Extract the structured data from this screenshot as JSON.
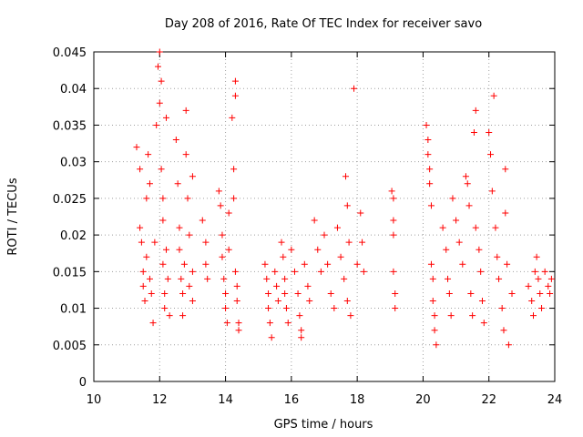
{
  "chart_data": {
    "type": "scatter",
    "title": "Day 208 of 2016, Rate Of TEC Index for receiver savo",
    "xlabel": "GPS time / hours",
    "ylabel": "ROTI / TECUs",
    "xlim": [
      10,
      24
    ],
    "ylim": [
      0,
      0.045
    ],
    "x_ticks": [
      "10",
      "12",
      "14",
      "16",
      "18",
      "20",
      "22",
      "24"
    ],
    "y_ticks": [
      "0",
      "0.005",
      "0.01",
      "0.015",
      "0.02",
      "0.025",
      "0.03",
      "0.035",
      "0.04",
      "0.045"
    ],
    "grid": true,
    "marker": "+",
    "color": "#ff0000",
    "points": [
      [
        11.3,
        0.032
      ],
      [
        11.4,
        0.029
      ],
      [
        11.4,
        0.021
      ],
      [
        11.45,
        0.019
      ],
      [
        11.5,
        0.015
      ],
      [
        11.5,
        0.013
      ],
      [
        11.55,
        0.011
      ],
      [
        11.6,
        0.017
      ],
      [
        11.6,
        0.025
      ],
      [
        11.65,
        0.031
      ],
      [
        11.7,
        0.027
      ],
      [
        11.7,
        0.014
      ],
      [
        11.75,
        0.012
      ],
      [
        11.8,
        0.008
      ],
      [
        11.85,
        0.019
      ],
      [
        11.9,
        0.035
      ],
      [
        11.95,
        0.043
      ],
      [
        12.0,
        0.045
      ],
      [
        12.0,
        0.038
      ],
      [
        12.05,
        0.041
      ],
      [
        12.05,
        0.029
      ],
      [
        12.1,
        0.025
      ],
      [
        12.1,
        0.022
      ],
      [
        12.1,
        0.016
      ],
      [
        12.15,
        0.012
      ],
      [
        12.15,
        0.01
      ],
      [
        12.2,
        0.036
      ],
      [
        12.2,
        0.018
      ],
      [
        12.25,
        0.014
      ],
      [
        12.3,
        0.009
      ],
      [
        12.5,
        0.033
      ],
      [
        12.55,
        0.027
      ],
      [
        12.6,
        0.021
      ],
      [
        12.6,
        0.018
      ],
      [
        12.65,
        0.014
      ],
      [
        12.7,
        0.012
      ],
      [
        12.7,
        0.009
      ],
      [
        12.75,
        0.016
      ],
      [
        12.8,
        0.037
      ],
      [
        12.8,
        0.031
      ],
      [
        12.85,
        0.025
      ],
      [
        12.9,
        0.02
      ],
      [
        12.9,
        0.013
      ],
      [
        13.0,
        0.028
      ],
      [
        13.0,
        0.015
      ],
      [
        13.0,
        0.011
      ],
      [
        13.3,
        0.022
      ],
      [
        13.4,
        0.019
      ],
      [
        13.4,
        0.016
      ],
      [
        13.45,
        0.014
      ],
      [
        13.8,
        0.026
      ],
      [
        13.85,
        0.024
      ],
      [
        13.9,
        0.02
      ],
      [
        13.9,
        0.017
      ],
      [
        13.95,
        0.014
      ],
      [
        14.0,
        0.012
      ],
      [
        14.0,
        0.01
      ],
      [
        14.05,
        0.008
      ],
      [
        14.1,
        0.023
      ],
      [
        14.1,
        0.018
      ],
      [
        14.2,
        0.036
      ],
      [
        14.25,
        0.029
      ],
      [
        14.25,
        0.025
      ],
      [
        14.3,
        0.041
      ],
      [
        14.3,
        0.039
      ],
      [
        14.3,
        0.015
      ],
      [
        14.35,
        0.013
      ],
      [
        14.35,
        0.011
      ],
      [
        14.4,
        0.008
      ],
      [
        14.4,
        0.007
      ],
      [
        15.2,
        0.016
      ],
      [
        15.25,
        0.014
      ],
      [
        15.3,
        0.012
      ],
      [
        15.3,
        0.01
      ],
      [
        15.35,
        0.008
      ],
      [
        15.4,
        0.006
      ],
      [
        15.5,
        0.015
      ],
      [
        15.55,
        0.013
      ],
      [
        15.6,
        0.011
      ],
      [
        15.7,
        0.019
      ],
      [
        15.75,
        0.017
      ],
      [
        15.8,
        0.014
      ],
      [
        15.8,
        0.012
      ],
      [
        15.85,
        0.01
      ],
      [
        15.9,
        0.008
      ],
      [
        16.0,
        0.018
      ],
      [
        16.1,
        0.015
      ],
      [
        16.2,
        0.012
      ],
      [
        16.25,
        0.009
      ],
      [
        16.3,
        0.007
      ],
      [
        16.3,
        0.006
      ],
      [
        16.4,
        0.016
      ],
      [
        16.5,
        0.013
      ],
      [
        16.55,
        0.011
      ],
      [
        16.7,
        0.022
      ],
      [
        16.8,
        0.018
      ],
      [
        16.9,
        0.015
      ],
      [
        17.0,
        0.02
      ],
      [
        17.1,
        0.016
      ],
      [
        17.2,
        0.012
      ],
      [
        17.3,
        0.01
      ],
      [
        17.4,
        0.021
      ],
      [
        17.5,
        0.017
      ],
      [
        17.6,
        0.014
      ],
      [
        17.65,
        0.028
      ],
      [
        17.7,
        0.024
      ],
      [
        17.7,
        0.011
      ],
      [
        17.75,
        0.019
      ],
      [
        17.8,
        0.009
      ],
      [
        17.9,
        0.04
      ],
      [
        18.0,
        0.016
      ],
      [
        18.1,
        0.023
      ],
      [
        18.15,
        0.019
      ],
      [
        18.2,
        0.015
      ],
      [
        19.05,
        0.026
      ],
      [
        19.1,
        0.025
      ],
      [
        19.1,
        0.022
      ],
      [
        19.1,
        0.02
      ],
      [
        19.1,
        0.015
      ],
      [
        19.15,
        0.012
      ],
      [
        19.15,
        0.01
      ],
      [
        20.1,
        0.035
      ],
      [
        20.15,
        0.033
      ],
      [
        20.15,
        0.031
      ],
      [
        20.2,
        0.029
      ],
      [
        20.2,
        0.027
      ],
      [
        20.25,
        0.024
      ],
      [
        20.25,
        0.016
      ],
      [
        20.3,
        0.014
      ],
      [
        20.3,
        0.011
      ],
      [
        20.35,
        0.009
      ],
      [
        20.35,
        0.007
      ],
      [
        20.4,
        0.005
      ],
      [
        20.6,
        0.021
      ],
      [
        20.7,
        0.018
      ],
      [
        20.75,
        0.014
      ],
      [
        20.8,
        0.012
      ],
      [
        20.85,
        0.009
      ],
      [
        20.9,
        0.025
      ],
      [
        21.0,
        0.022
      ],
      [
        21.1,
        0.019
      ],
      [
        21.2,
        0.016
      ],
      [
        21.3,
        0.028
      ],
      [
        21.35,
        0.027
      ],
      [
        21.4,
        0.024
      ],
      [
        21.45,
        0.012
      ],
      [
        21.5,
        0.009
      ],
      [
        21.55,
        0.034
      ],
      [
        21.6,
        0.037
      ],
      [
        21.6,
        0.021
      ],
      [
        21.7,
        0.018
      ],
      [
        21.75,
        0.015
      ],
      [
        21.8,
        0.011
      ],
      [
        21.85,
        0.008
      ],
      [
        22.0,
        0.034
      ],
      [
        22.05,
        0.031
      ],
      [
        22.1,
        0.026
      ],
      [
        22.15,
        0.039
      ],
      [
        22.2,
        0.021
      ],
      [
        22.25,
        0.017
      ],
      [
        22.3,
        0.014
      ],
      [
        22.4,
        0.01
      ],
      [
        22.45,
        0.007
      ],
      [
        22.5,
        0.029
      ],
      [
        22.5,
        0.023
      ],
      [
        22.55,
        0.016
      ],
      [
        22.6,
        0.005
      ],
      [
        22.7,
        0.012
      ],
      [
        23.2,
        0.013
      ],
      [
        23.3,
        0.011
      ],
      [
        23.35,
        0.009
      ],
      [
        23.4,
        0.015
      ],
      [
        23.45,
        0.017
      ],
      [
        23.5,
        0.014
      ],
      [
        23.55,
        0.012
      ],
      [
        23.6,
        0.01
      ],
      [
        23.7,
        0.015
      ],
      [
        23.8,
        0.013
      ],
      [
        23.85,
        0.012
      ],
      [
        23.9,
        0.014
      ]
    ]
  }
}
